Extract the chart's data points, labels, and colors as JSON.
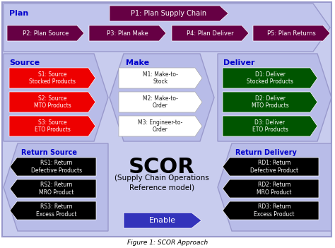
{
  "bg_color": "#c8ccee",
  "outer_bg": "#ffffff",
  "title": "Figure 1: SCOR Approach",
  "plan_text": "Plan",
  "p1_color": "#660044",
  "p1_text": "P1: Plan Supply Chain",
  "p_row_color": "#660044",
  "p_arrows": [
    "P2: Plan Source",
    "P3: Plan Make",
    "P4: Plan Deliver",
    "P5: Plan Returns"
  ],
  "source_title": "Source",
  "source_items": [
    "S1: Source\nStocked Products",
    "S2: Source\nMTO Products",
    "S3: Source\nETO Products"
  ],
  "source_item_color": "#ee0000",
  "make_title": "Make",
  "make_items": [
    "M1: Make-to-\nStock",
    "M2: Make-to-\nOrder",
    "M3: Engineer-to-\nOrder"
  ],
  "make_item_color": "#ffffff",
  "deliver_title": "Deliver",
  "deliver_items": [
    "D1: Deliver\nStocked Products",
    "D2: Deliver\nMTO Products",
    "D3: Deliver\nETO Products"
  ],
  "deliver_item_color": "#005500",
  "return_source_title": "Return Source",
  "rs_items": [
    "RS1: Return\nDefective Products",
    "RS2: Return\nMRO Product",
    "RS3: Return\nExcess Product"
  ],
  "return_delivery_title": "Return Delivery",
  "rd_items": [
    "RD1: Return\nDefective Product",
    "RD2: Return\nMRO Product",
    "RD3: Return\nExcess Product"
  ],
  "scor_text1": "SCOR",
  "scor_text2": "(Supply Chain Operations\nReference model)",
  "enable_color": "#3333bb",
  "enable_text": "Enable",
  "title_color": "#0000cc",
  "panel_color": "#b8bce8"
}
